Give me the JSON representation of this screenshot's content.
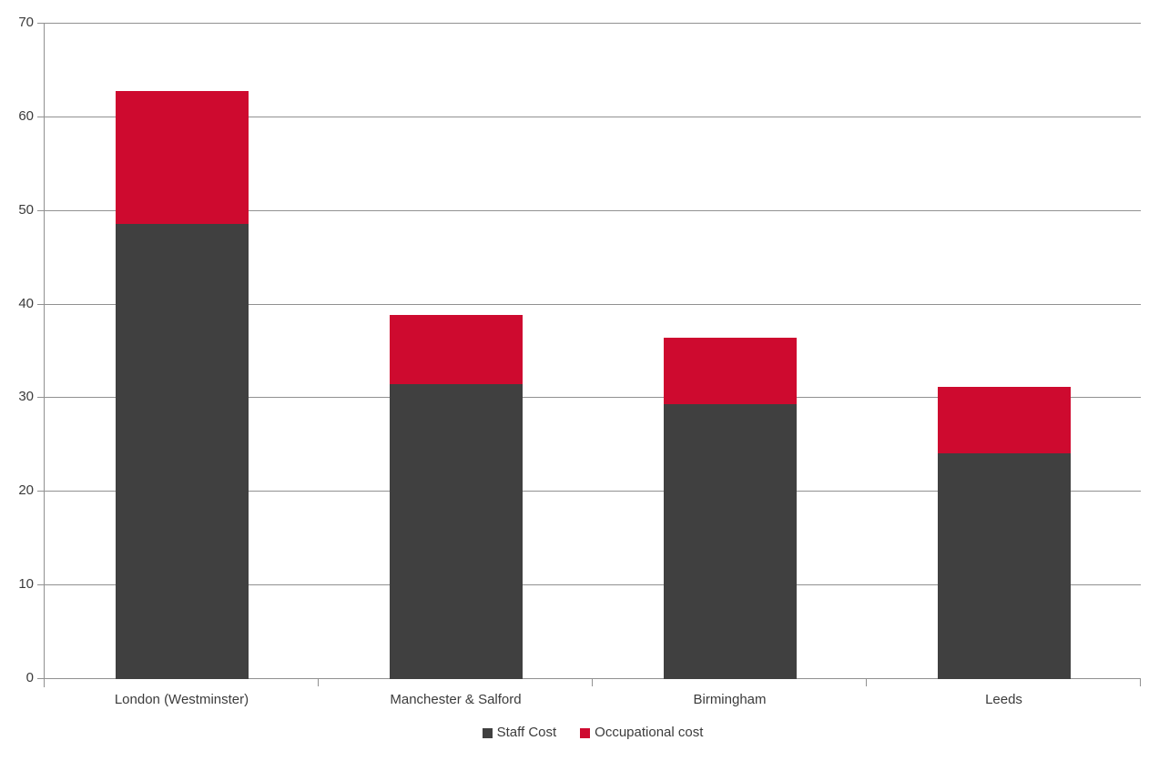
{
  "chart_data": {
    "type": "bar",
    "stacked": true,
    "title": "",
    "xlabel": "",
    "ylabel": "",
    "categories": [
      "London (Westminster)",
      "Manchester & Salford",
      "Birmingham",
      "Leeds"
    ],
    "series": [
      {
        "name": "Staff Cost",
        "color": "#404040",
        "values": [
          48.6,
          31.5,
          29.4,
          24.1
        ]
      },
      {
        "name": "Occupational cost",
        "color": "#ce0a2f",
        "values": [
          14.2,
          7.4,
          7.1,
          7.1
        ]
      }
    ],
    "ylim": [
      0,
      70
    ],
    "yticks": [
      0,
      10,
      20,
      30,
      40,
      50,
      60,
      70
    ],
    "grid": "horizontal-only",
    "legend_position": "bottom-center"
  },
  "colors": {
    "background": "#ffffff",
    "axis": "#919191",
    "gridline": "#919191",
    "text": "#3b3b3b",
    "staff_cost": "#404040",
    "occupational_cost": "#ce0a2f"
  }
}
